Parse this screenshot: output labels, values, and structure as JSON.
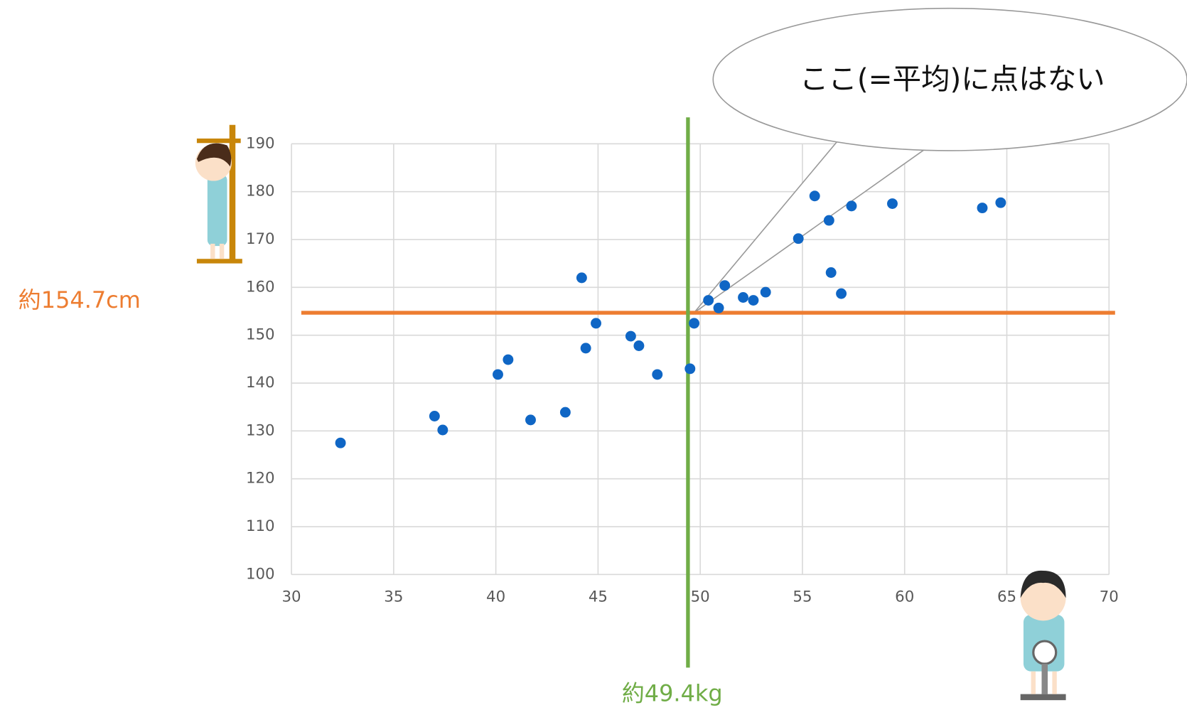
{
  "chart_data": {
    "type": "scatter",
    "x": [
      32.4,
      37.0,
      37.4,
      40.1,
      40.6,
      41.7,
      43.4,
      44.2,
      44.4,
      44.9,
      46.6,
      47.0,
      47.9,
      49.5,
      49.7,
      50.4,
      50.9,
      51.2,
      52.1,
      52.6,
      53.2,
      54.8,
      55.6,
      56.3,
      56.4,
      56.9,
      57.4,
      59.4,
      63.8,
      64.7
    ],
    "values": [
      127.5,
      133.1,
      130.2,
      141.8,
      144.9,
      132.3,
      133.9,
      162.0,
      147.3,
      152.5,
      149.8,
      147.8,
      141.8,
      143.0,
      152.5,
      157.3,
      155.7,
      160.4,
      157.9,
      157.3,
      159.0,
      170.2,
      179.1,
      174.0,
      163.1,
      158.7,
      177.0,
      177.5,
      176.6,
      177.7
    ],
    "color": "#0f66c5",
    "xlim": [
      30,
      70
    ],
    "xticks": [
      30,
      35,
      40,
      45,
      50,
      55,
      60,
      65,
      70
    ],
    "ylim": [
      100,
      190
    ],
    "yticks": [
      100,
      110,
      120,
      130,
      140,
      150,
      160,
      170,
      180,
      190
    ],
    "grid": true,
    "hline": {
      "value": 154.7,
      "label": "約154.7cm",
      "color": "#ed7d31"
    },
    "vline": {
      "value": 49.4,
      "label": "約49.4kg",
      "color": "#70ad47"
    },
    "callout": "ここ(=平均)に点はない"
  }
}
